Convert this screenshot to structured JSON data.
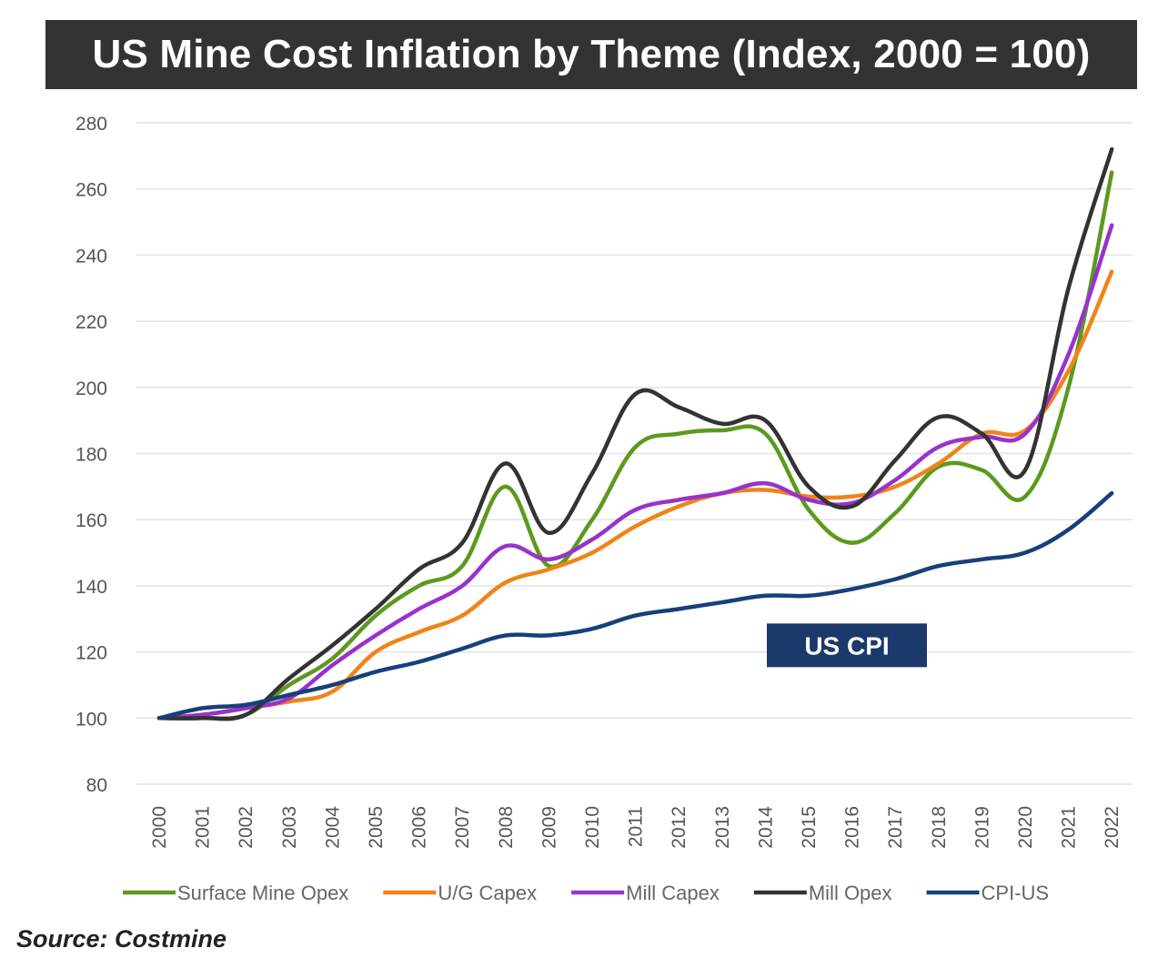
{
  "chart_data": {
    "type": "line",
    "title": "US Mine Cost Inflation by Theme (Index, 2000 = 100)",
    "xlabel": "",
    "ylabel": "",
    "ylim": [
      80,
      280
    ],
    "yticks": [
      80,
      100,
      120,
      140,
      160,
      180,
      200,
      220,
      240,
      260,
      280
    ],
    "grid": true,
    "categories": [
      "2000",
      "2001",
      "2002",
      "2003",
      "2004",
      "2005",
      "2006",
      "2007",
      "2008",
      "2009",
      "2010",
      "2011",
      "2012",
      "2013",
      "2014",
      "2015",
      "2016",
      "2017",
      "2018",
      "2019",
      "2020",
      "2021",
      "2022"
    ],
    "series": [
      {
        "name": "Surface Mine Opex",
        "color": "#5b9a1e",
        "values": [
          100,
          100,
          101,
          110,
          118,
          131,
          140,
          146,
          170,
          146,
          160,
          182,
          186,
          187,
          186,
          163,
          153,
          162,
          176,
          175,
          167,
          200,
          265
        ]
      },
      {
        "name": "U/G Capex",
        "color": "#f08418",
        "values": [
          100,
          101,
          103,
          105,
          108,
          120,
          126,
          131,
          141,
          145,
          150,
          158,
          164,
          168,
          169,
          167,
          167,
          170,
          177,
          186,
          187,
          205,
          235
        ]
      },
      {
        "name": "Mill Capex",
        "color": "#9932cc",
        "values": [
          100,
          101,
          103,
          106,
          116,
          125,
          133,
          140,
          152,
          148,
          154,
          163,
          166,
          168,
          171,
          166,
          165,
          172,
          182,
          185,
          186,
          210,
          249
        ]
      },
      {
        "name": "Mill Opex",
        "color": "#333333",
        "values": [
          100,
          100,
          101,
          112,
          122,
          133,
          145,
          153,
          177,
          156,
          174,
          198,
          194,
          189,
          190,
          170,
          164,
          178,
          191,
          186,
          175,
          230,
          272
        ]
      },
      {
        "name": "CPI-US",
        "color": "#17407a",
        "values": [
          100,
          103,
          104,
          107,
          110,
          114,
          117,
          121,
          125,
          125,
          127,
          131,
          133,
          135,
          137,
          137,
          139,
          142,
          146,
          148,
          150,
          157,
          168
        ]
      }
    ],
    "annotations": [
      {
        "text": "US CPI",
        "x": "2015",
        "y": 122,
        "bg": "#1b3a6b",
        "color": "#ffffff"
      }
    ],
    "legend": "bottom",
    "source": "Source: Costmine"
  }
}
